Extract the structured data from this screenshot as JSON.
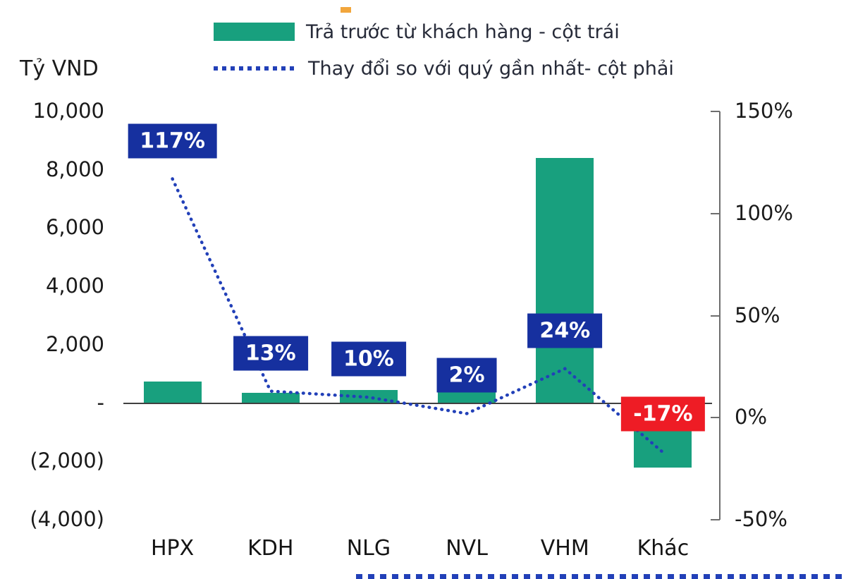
{
  "unit_label": "Tỷ VND",
  "legend": {
    "bar": "Trả trước từ khách hàng - cột trái",
    "line": "Thay đổi  so với quý gần nhất- cột phải"
  },
  "colors": {
    "bar": "#18A07E",
    "line": "#2240B8",
    "label_box_positive": "#16309F",
    "label_box_negative": "#EE1C25",
    "label_text": "#FFFFFF",
    "axis_text": "#1A1A1A",
    "axis_line": "#6E6E6E",
    "zero_line": "#404040",
    "artifact_orange": "#F2A63C"
  },
  "chart_data": {
    "type": "bar",
    "subtype": "bar+line-combo",
    "categories": [
      "HPX",
      "KDH",
      "NLG",
      "NVL",
      "VHM",
      "Khác"
    ],
    "series": [
      {
        "name": "Trả trước từ khách hàng - cột trái",
        "type": "bar",
        "axis": "left",
        "unit": "Tỷ VND",
        "values": [
          750,
          350,
          450,
          450,
          8400,
          -2200
        ]
      },
      {
        "name": "Thay đổi so với quý gần nhất- cột phải",
        "type": "line",
        "style": "dotted",
        "axis": "right",
        "unit": "%",
        "values": [
          117,
          13,
          10,
          2,
          24,
          -17
        ]
      }
    ],
    "data_labels": [
      "117%",
      "13%",
      "10%",
      "2%",
      "24%",
      "-17%"
    ],
    "left_axis": {
      "title": "Tỷ VND",
      "min": -4000,
      "max": 10000,
      "tick_step": 2000,
      "ticks": [
        "10,000",
        "8,000",
        "6,000",
        "4,000",
        "2,000",
        "-",
        "(2,000)",
        "(4,000)"
      ]
    },
    "right_axis": {
      "min": -50,
      "max": 150,
      "tick_step": 50,
      "ticks": [
        "150%",
        "100%",
        "50%",
        "0%",
        "-50%"
      ]
    },
    "grid": false,
    "legend_position": "top"
  }
}
